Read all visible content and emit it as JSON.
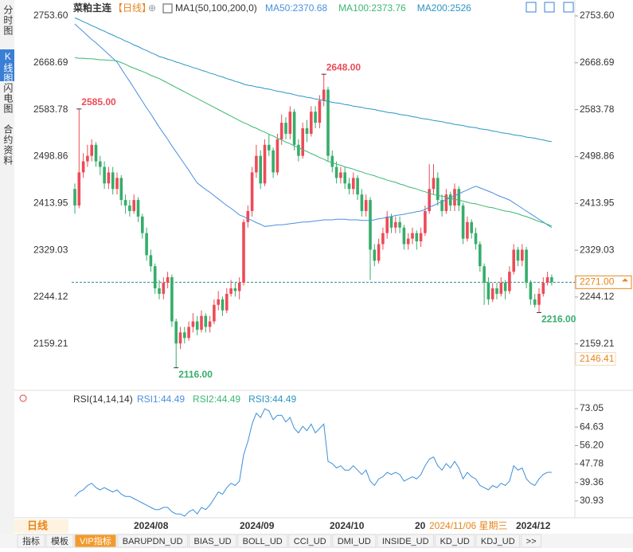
{
  "sidebar": [
    "分时图",
    "K线图",
    "闪电图",
    "合约资料"
  ],
  "chart_data": [
    {
      "type": "candlestick",
      "title": "菜粕主连",
      "period": "【日线】",
      "indicator": "MA1(50,100,200,0)",
      "candles": [
        [
          2440,
          2450,
          2395,
          2410
        ],
        [
          2410,
          2585,
          2405,
          2470
        ],
        [
          2470,
          2505,
          2460,
          2490
        ],
        [
          2490,
          2520,
          2480,
          2500
        ],
        [
          2500,
          2530,
          2490,
          2520
        ],
        [
          2520,
          2525,
          2480,
          2490
        ],
        [
          2490,
          2500,
          2465,
          2480
        ],
        [
          2480,
          2490,
          2440,
          2450
        ],
        [
          2450,
          2480,
          2440,
          2470
        ],
        [
          2470,
          2480,
          2430,
          2440
        ],
        [
          2440,
          2470,
          2430,
          2460
        ],
        [
          2460,
          2465,
          2410,
          2420
        ],
        [
          2420,
          2430,
          2395,
          2410
        ],
        [
          2410,
          2420,
          2390,
          2400
        ],
        [
          2400,
          2430,
          2395,
          2420
        ],
        [
          2420,
          2425,
          2380,
          2390
        ],
        [
          2390,
          2395,
          2350,
          2360
        ],
        [
          2360,
          2370,
          2310,
          2320
        ],
        [
          2320,
          2330,
          2290,
          2300
        ],
        [
          2300,
          2305,
          2250,
          2260
        ],
        [
          2260,
          2275,
          2240,
          2250
        ],
        [
          2250,
          2280,
          2240,
          2270
        ],
        [
          2270,
          2290,
          2260,
          2280
        ],
        [
          2280,
          2285,
          2190,
          2200
        ],
        [
          2200,
          2205,
          2116,
          2160
        ],
        [
          2160,
          2190,
          2150,
          2180
        ],
        [
          2180,
          2190,
          2160,
          2170
        ],
        [
          2170,
          2200,
          2165,
          2190
        ],
        [
          2190,
          2215,
          2180,
          2200
        ],
        [
          2200,
          2210,
          2175,
          2185
        ],
        [
          2185,
          2220,
          2180,
          2210
        ],
        [
          2210,
          2215,
          2180,
          2190
        ],
        [
          2190,
          2210,
          2180,
          2200
        ],
        [
          2200,
          2240,
          2195,
          2230
        ],
        [
          2230,
          2255,
          2220,
          2240
        ],
        [
          2240,
          2245,
          2210,
          2220
        ],
        [
          2220,
          2260,
          2215,
          2250
        ],
        [
          2250,
          2275,
          2245,
          2260
        ],
        [
          2260,
          2270,
          2245,
          2255
        ],
        [
          2255,
          2280,
          2240,
          2270
        ],
        [
          2270,
          2385,
          2265,
          2380
        ],
        [
          2380,
          2410,
          2370,
          2400
        ],
        [
          2400,
          2480,
          2390,
          2470
        ],
        [
          2470,
          2520,
          2460,
          2500
        ],
        [
          2500,
          2510,
          2440,
          2450
        ],
        [
          2450,
          2530,
          2445,
          2520
        ],
        [
          2520,
          2540,
          2500,
          2510
        ],
        [
          2510,
          2515,
          2460,
          2470
        ],
        [
          2470,
          2540,
          2465,
          2530
        ],
        [
          2530,
          2575,
          2520,
          2560
        ],
        [
          2560,
          2570,
          2530,
          2540
        ],
        [
          2540,
          2590,
          2530,
          2580
        ],
        [
          2580,
          2585,
          2510,
          2520
        ],
        [
          2520,
          2530,
          2490,
          2500
        ],
        [
          2500,
          2560,
          2495,
          2550
        ],
        [
          2550,
          2565,
          2525,
          2540
        ],
        [
          2540,
          2590,
          2535,
          2580
        ],
        [
          2580,
          2590,
          2550,
          2560
        ],
        [
          2560,
          2610,
          2550,
          2600
        ],
        [
          2600,
          2648,
          2590,
          2620
        ],
        [
          2620,
          2625,
          2490,
          2500
        ],
        [
          2500,
          2510,
          2470,
          2480
        ],
        [
          2480,
          2490,
          2450,
          2460
        ],
        [
          2460,
          2480,
          2450,
          2470
        ],
        [
          2470,
          2480,
          2440,
          2450
        ],
        [
          2450,
          2460,
          2430,
          2440
        ],
        [
          2440,
          2470,
          2430,
          2460
        ],
        [
          2460,
          2465,
          2420,
          2430
        ],
        [
          2430,
          2440,
          2390,
          2400
        ],
        [
          2400,
          2430,
          2390,
          2420
        ],
        [
          2420,
          2425,
          2275,
          2330
        ],
        [
          2330,
          2340,
          2300,
          2310
        ],
        [
          2310,
          2350,
          2305,
          2340
        ],
        [
          2340,
          2370,
          2330,
          2360
        ],
        [
          2360,
          2400,
          2350,
          2390
        ],
        [
          2390,
          2395,
          2360,
          2370
        ],
        [
          2370,
          2390,
          2360,
          2380
        ],
        [
          2380,
          2390,
          2360,
          2370
        ],
        [
          2370,
          2375,
          2330,
          2340
        ],
        [
          2340,
          2360,
          2330,
          2350
        ],
        [
          2350,
          2370,
          2340,
          2360
        ],
        [
          2360,
          2365,
          2330,
          2345
        ],
        [
          2345,
          2370,
          2335,
          2360
        ],
        [
          2360,
          2410,
          2355,
          2400
        ],
        [
          2400,
          2485,
          2395,
          2440
        ],
        [
          2440,
          2485,
          2430,
          2460
        ],
        [
          2460,
          2470,
          2410,
          2420
        ],
        [
          2420,
          2430,
          2390,
          2400
        ],
        [
          2400,
          2440,
          2395,
          2430
        ],
        [
          2430,
          2435,
          2400,
          2410
        ],
        [
          2410,
          2450,
          2400,
          2440
        ],
        [
          2440,
          2445,
          2400,
          2410
        ],
        [
          2410,
          2415,
          2340,
          2350
        ],
        [
          2350,
          2390,
          2345,
          2380
        ],
        [
          2380,
          2385,
          2350,
          2360
        ],
        [
          2360,
          2370,
          2330,
          2340
        ],
        [
          2340,
          2345,
          2290,
          2300
        ],
        [
          2300,
          2305,
          2230,
          2270
        ],
        [
          2270,
          2280,
          2230,
          2240
        ],
        [
          2240,
          2270,
          2235,
          2260
        ],
        [
          2260,
          2270,
          2240,
          2250
        ],
        [
          2250,
          2280,
          2245,
          2270
        ],
        [
          2270,
          2275,
          2240,
          2255
        ],
        [
          2255,
          2300,
          2250,
          2290
        ],
        [
          2290,
          2340,
          2285,
          2330
        ],
        [
          2330,
          2335,
          2300,
          2310
        ],
        [
          2310,
          2340,
          2300,
          2330
        ],
        [
          2330,
          2335,
          2260,
          2270
        ],
        [
          2270,
          2275,
          2230,
          2240
        ],
        [
          2240,
          2250,
          2225,
          2230
        ],
        [
          2230,
          2260,
          2216,
          2250
        ],
        [
          2250,
          2280,
          2245,
          2270
        ],
        [
          2270,
          2290,
          2265,
          2280
        ],
        [
          2280,
          2285,
          2265,
          2271
        ]
      ],
      "up_color": "#ec4b57",
      "down_color": "#36ad6a",
      "series": [
        {
          "name": "MA50:2370.68",
          "color": "#4a8fe0",
          "values": [
            2739,
            2732,
            2725,
            2718,
            2711,
            2705,
            2698,
            2691,
            2684,
            2677,
            2670,
            2658,
            2646,
            2635,
            2623,
            2611,
            2599,
            2587,
            2576,
            2564,
            2552,
            2541,
            2530,
            2518,
            2507,
            2496,
            2485,
            2474,
            2462,
            2451,
            2445,
            2439,
            2434,
            2428,
            2422,
            2416,
            2410,
            2405,
            2399,
            2393,
            2390,
            2386,
            2383,
            2379,
            2376,
            2372,
            2373,
            2374,
            2375,
            2375,
            2376,
            2377,
            2378,
            2379,
            2380,
            2380,
            2381,
            2382,
            2383,
            2384,
            2384,
            2384,
            2385,
            2385,
            2385,
            2384,
            2384,
            2384,
            2383,
            2383,
            2383,
            2384,
            2386,
            2387,
            2389,
            2390,
            2392,
            2393,
            2394,
            2396,
            2397,
            2399,
            2400,
            2403,
            2407,
            2410,
            2414,
            2417,
            2421,
            2424,
            2428,
            2431,
            2435,
            2438,
            2442,
            2445,
            2442,
            2439,
            2436,
            2433,
            2429,
            2426,
            2423,
            2420,
            2415,
            2410,
            2405,
            2400,
            2395,
            2390,
            2385,
            2380,
            2375,
            2370
          ]
        },
        {
          "name": "MA100:2373.76",
          "color": "#3bb872",
          "values": [
            2678,
            2677,
            2677,
            2676,
            2676,
            2675,
            2674,
            2674,
            2673,
            2673,
            2672,
            2669,
            2666,
            2662,
            2659,
            2656,
            2653,
            2650,
            2646,
            2643,
            2640,
            2636,
            2632,
            2628,
            2624,
            2620,
            2616,
            2612,
            2608,
            2604,
            2600,
            2596,
            2592,
            2588,
            2584,
            2580,
            2576,
            2572,
            2568,
            2564,
            2560,
            2557,
            2553,
            2550,
            2546,
            2543,
            2539,
            2536,
            2532,
            2529,
            2525,
            2522,
            2518,
            2515,
            2511,
            2508,
            2504,
            2501,
            2497,
            2494,
            2490,
            2488,
            2485,
            2483,
            2480,
            2478,
            2476,
            2473,
            2471,
            2468,
            2466,
            2464,
            2461,
            2459,
            2456,
            2454,
            2452,
            2449,
            2447,
            2444,
            2442,
            2440,
            2437,
            2435,
            2432,
            2430,
            2428,
            2427,
            2425,
            2423,
            2421,
            2420,
            2418,
            2416,
            2414,
            2413,
            2411,
            2409,
            2407,
            2406,
            2404,
            2402,
            2400,
            2399,
            2397,
            2395,
            2392,
            2390,
            2387,
            2384,
            2381,
            2379,
            2376,
            2373
          ]
        },
        {
          "name": "MA200:2526",
          "color": "#2b95c5",
          "values": [
            2750,
            2747,
            2743,
            2740,
            2736,
            2733,
            2729,
            2726,
            2722,
            2719,
            2715,
            2712,
            2708,
            2705,
            2701,
            2698,
            2694,
            2691,
            2687,
            2684,
            2680,
            2678,
            2675,
            2673,
            2670,
            2668,
            2665,
            2663,
            2660,
            2658,
            2655,
            2653,
            2650,
            2648,
            2645,
            2643,
            2640,
            2638,
            2635,
            2633,
            2630,
            2628,
            2627,
            2625,
            2624,
            2622,
            2621,
            2619,
            2617,
            2616,
            2614,
            2613,
            2611,
            2609,
            2608,
            2606,
            2605,
            2603,
            2602,
            2600,
            2599,
            2597,
            2596,
            2595,
            2593,
            2592,
            2590,
            2589,
            2588,
            2586,
            2585,
            2584,
            2582,
            2581,
            2579,
            2578,
            2577,
            2575,
            2574,
            2573,
            2571,
            2570,
            2568,
            2567,
            2566,
            2564,
            2563,
            2562,
            2560,
            2559,
            2557,
            2556,
            2555,
            2553,
            2552,
            2551,
            2549,
            2548,
            2547,
            2545,
            2544,
            2542,
            2541,
            2540,
            2538,
            2537,
            2536,
            2534,
            2533,
            2532,
            2530,
            2529,
            2527,
            2526
          ]
        }
      ],
      "ylim": [
        2104,
        2753.6
      ],
      "yticks": [
        {
          "value": 2753.6,
          "label": "2753.60"
        },
        2668.69,
        2583.78,
        2498.86,
        2413.95,
        2329.03,
        2244.12,
        2159.21
      ],
      "annotations": [
        {
          "value": 2585,
          "label": "2585.00"
        },
        {
          "value": 2648,
          "label": "2648.00"
        },
        {
          "value": 2116,
          "label": "2116.00"
        },
        {
          "value": 2216,
          "label": "2216.00"
        }
      ],
      "last_price": {
        "value": 2271,
        "label": "2271.00"
      },
      "extra_label": 2146.41
    },
    {
      "type": "line",
      "title": "RSI(14,14,14)",
      "legend": [
        {
          "name": "RSI1:44.49",
          "color": "#4a8fe0"
        },
        {
          "name": "RSI2:44.49",
          "color": "#3bb872"
        },
        {
          "name": "RSI3:44.49",
          "color": "#2b95c5"
        }
      ],
      "color": "#3b8fd9",
      "values": [
        33,
        35,
        36,
        38,
        39,
        37,
        36,
        37,
        36,
        35,
        36,
        34,
        33,
        33,
        32,
        31,
        30,
        29,
        28,
        27,
        27,
        28,
        28,
        26,
        25,
        25,
        24,
        26,
        27,
        25,
        28,
        27,
        29,
        32,
        35,
        34,
        37,
        39,
        38,
        40,
        52,
        58,
        66,
        71,
        69,
        73,
        72,
        68,
        70,
        70,
        67,
        69,
        64,
        62,
        65,
        63,
        66,
        62,
        64,
        66,
        49,
        48,
        46,
        47,
        45,
        45,
        47,
        45,
        43,
        45,
        40,
        38,
        41,
        42,
        44,
        43,
        44,
        43,
        40,
        41,
        42,
        41,
        43,
        47,
        50,
        51,
        47,
        45,
        48,
        46,
        49,
        46,
        41,
        44,
        42,
        41,
        38,
        37,
        36,
        38,
        37,
        39,
        38,
        40,
        47,
        45,
        46,
        41,
        39,
        38,
        41,
        43,
        44,
        44
      ],
      "ylim": [
        24,
        79.6
      ],
      "yticks": [
        73.05,
        64.63,
        {
          "value": 56.2,
          "label": "56.20"
        },
        47.78,
        39.36,
        30.93
      ]
    }
  ],
  "period_tab": "日线",
  "dates": [
    "2024/08",
    "2024/09",
    "2024/10",
    "20",
    "2024/12"
  ],
  "cursor_date": "2024/11/06 星期三",
  "tabs": [
    "指标",
    "模板",
    "VIP指标",
    "BARUPDN_UD",
    "BIAS_UD",
    "BOLL_UD",
    "CCI_UD",
    "DMI_UD",
    "INSIDE_UD",
    "KD_UD",
    "KDJ_UD",
    ">>"
  ]
}
